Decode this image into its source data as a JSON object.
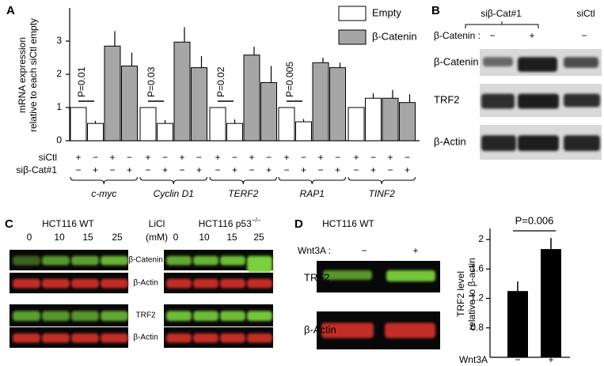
{
  "chart_data": [
    {
      "type": "bar",
      "panel_label": "A",
      "y_label": [
        "mRNA expression",
        "relative to each siCtl empty"
      ],
      "categories": [
        "c-myc",
        "Cyclin D1",
        "TERF2",
        "RAP1",
        "TINF2"
      ],
      "series": [
        {
          "name": "Empty",
          "color": "#ffffff",
          "values": [
            [
              1,
              0.52
            ],
            [
              1,
              0.52
            ],
            [
              1,
              0.52
            ],
            [
              1,
              0.57
            ],
            [
              1,
              1.28
            ]
          ],
          "errors": [
            [
              null,
              0.08
            ],
            [
              null,
              0.1
            ],
            [
              null,
              0.12
            ],
            [
              null,
              0.08
            ],
            [
              null,
              0.15
            ]
          ]
        },
        {
          "name": "β-Catenin",
          "color": "#a6a6a6",
          "values": [
            [
              2.85,
              2.25
            ],
            [
              2.97,
              2.2
            ],
            [
              2.58,
              1.75
            ],
            [
              2.35,
              2.2
            ],
            [
              1.28,
              1.15
            ]
          ],
          "errors": [
            [
              0.45,
              0.4
            ],
            [
              0.45,
              0.35
            ],
            [
              0.25,
              0.5
            ],
            [
              0.15,
              0.15
            ],
            [
              0.25,
              0.25
            ]
          ]
        }
      ],
      "conditions": [
        {
          "label": "siCtl",
          "signs": [
            "+",
            "−",
            "+",
            "−"
          ]
        },
        {
          "label": "siβ-Cat#1",
          "signs": [
            "−",
            "+",
            "−",
            "+"
          ]
        }
      ],
      "annotations": [
        "P=0.01",
        "P=0.03",
        "P=0.02",
        "P=0.005"
      ],
      "ylim": [
        0,
        4
      ],
      "yticks": [
        0,
        1,
        2,
        3
      ]
    },
    {
      "type": "bar",
      "panel_label": "D",
      "y_label": [
        "TRF2 level",
        "relative to β-actin"
      ],
      "x_label": "Wnt3A",
      "categories": [
        "−",
        "+"
      ],
      "values": [
        1.3,
        1.87
      ],
      "errors": [
        0.13,
        0.15
      ],
      "color": "#000000",
      "annotation": "P=0.006",
      "ylim": [
        0.4,
        2.15
      ],
      "yticks": [
        0.8,
        1.2,
        1.6,
        2
      ]
    }
  ],
  "panel_b": {
    "label": "B",
    "group_label": "siβ-Cat#1",
    "control_label": "siCtl",
    "treatment_label": "β-Catenin :",
    "signs": [
      "−",
      "+",
      "−"
    ],
    "rows": [
      "β-Catenin",
      "TRF2",
      "β-Actin"
    ]
  },
  "panel_c": {
    "label": "C",
    "left_title": "HCT116 WT",
    "right_title": "HCT116 p53",
    "right_title_sup": "−/−",
    "treatment": "LiCl",
    "unit": "(mM)",
    "doses": [
      "0",
      "10",
      "15",
      "25"
    ],
    "rows": [
      "β-Catenin",
      "β-Actin",
      "TRF2",
      "β-Actin"
    ]
  },
  "panel_d_blot": {
    "title": "HCT116 WT",
    "treatment_label": "Wnt3A :",
    "signs": [
      "−",
      "+"
    ],
    "rows": [
      "TRF2",
      "β-Actin"
    ]
  }
}
